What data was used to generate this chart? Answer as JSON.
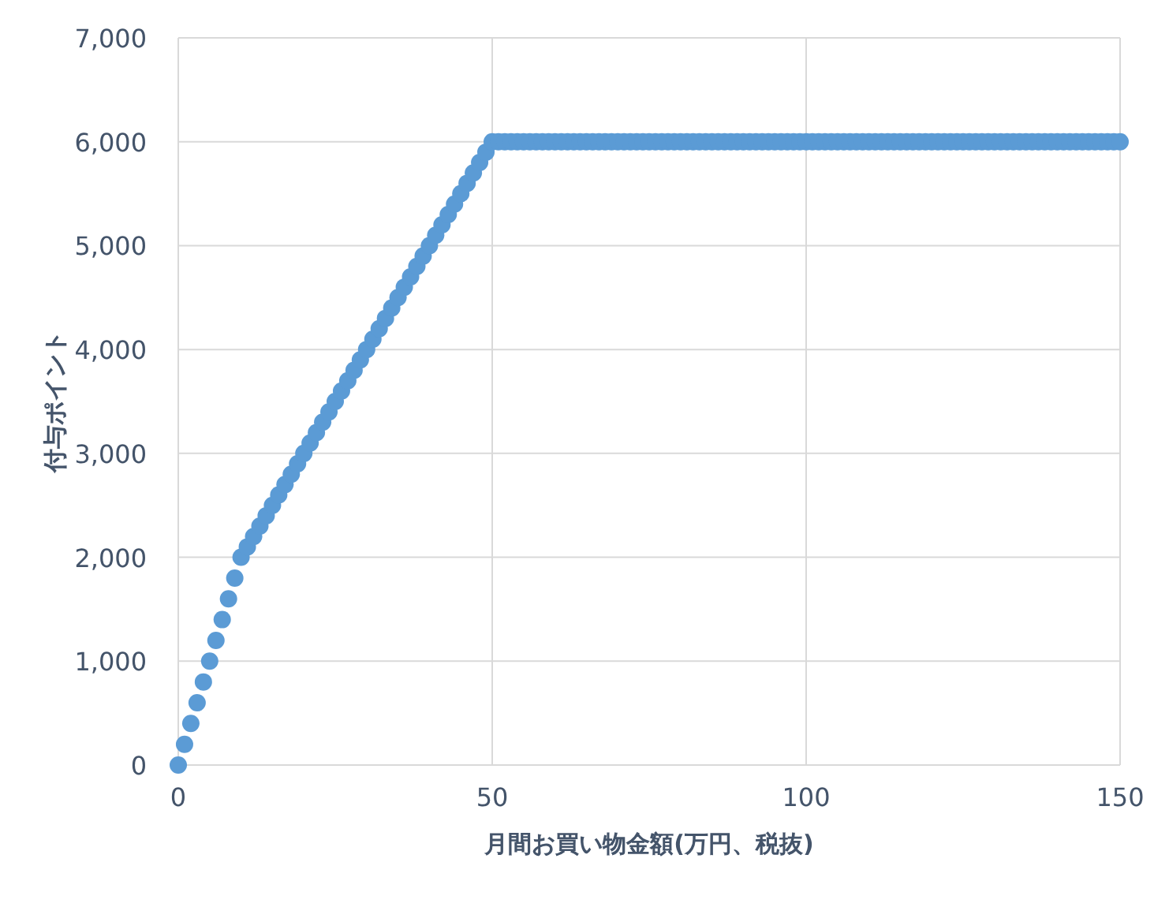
{
  "chart_data": {
    "type": "scatter",
    "xlabel": "月間お買い物金額(万円、税抜)",
    "ylabel": "付与ポイント",
    "xlim": [
      0,
      150
    ],
    "xticks": [
      0,
      50,
      100,
      150
    ],
    "ylim": [
      0,
      7000
    ],
    "yticks": [
      {
        "value": 0,
        "label": "0"
      },
      {
        "value": 1000,
        "label": "1,000"
      },
      {
        "value": 2000,
        "label": "2,000"
      },
      {
        "value": 3000,
        "label": "3,000"
      },
      {
        "value": 4000,
        "label": "4,000"
      },
      {
        "value": 5000,
        "label": "5,000"
      },
      {
        "value": 6000,
        "label": "6,000"
      },
      {
        "value": 7000,
        "label": "7,000"
      }
    ],
    "grid": true,
    "marker": "circle",
    "series": [
      {
        "color": "#5b9bd5",
        "x": [
          0,
          1,
          2,
          3,
          4,
          5,
          6,
          7,
          8,
          9,
          10,
          11,
          12,
          13,
          14,
          15,
          16,
          17,
          18,
          19,
          20,
          21,
          22,
          23,
          24,
          25,
          26,
          27,
          28,
          29,
          30,
          31,
          32,
          33,
          34,
          35,
          36,
          37,
          38,
          39,
          40,
          41,
          42,
          43,
          44,
          45,
          46,
          47,
          48,
          49,
          50,
          51,
          52,
          53,
          54,
          55,
          56,
          57,
          58,
          59,
          60,
          61,
          62,
          63,
          64,
          65,
          66,
          67,
          68,
          69,
          70,
          71,
          72,
          73,
          74,
          75,
          76,
          77,
          78,
          79,
          80,
          81,
          82,
          83,
          84,
          85,
          86,
          87,
          88,
          89,
          90,
          91,
          92,
          93,
          94,
          95,
          96,
          97,
          98,
          99,
          100,
          101,
          102,
          103,
          104,
          105,
          106,
          107,
          108,
          109,
          110,
          111,
          112,
          113,
          114,
          115,
          116,
          117,
          118,
          119,
          120,
          121,
          122,
          123,
          124,
          125,
          126,
          127,
          128,
          129,
          130,
          131,
          132,
          133,
          134,
          135,
          136,
          137,
          138,
          139,
          140,
          141,
          142,
          143,
          144,
          145,
          146,
          147,
          148,
          149,
          150
        ],
        "values": [
          0,
          200,
          400,
          600,
          800,
          1000,
          1200,
          1400,
          1600,
          1800,
          2000,
          2100,
          2200,
          2300,
          2400,
          2500,
          2600,
          2700,
          2800,
          2900,
          3000,
          3100,
          3200,
          3300,
          3400,
          3500,
          3600,
          3700,
          3800,
          3900,
          4000,
          4100,
          4200,
          4300,
          4400,
          4500,
          4600,
          4700,
          4800,
          4900,
          5000,
          5100,
          5200,
          5300,
          5400,
          5500,
          5600,
          5700,
          5800,
          5900,
          6000,
          6000,
          6000,
          6000,
          6000,
          6000,
          6000,
          6000,
          6000,
          6000,
          6000,
          6000,
          6000,
          6000,
          6000,
          6000,
          6000,
          6000,
          6000,
          6000,
          6000,
          6000,
          6000,
          6000,
          6000,
          6000,
          6000,
          6000,
          6000,
          6000,
          6000,
          6000,
          6000,
          6000,
          6000,
          6000,
          6000,
          6000,
          6000,
          6000,
          6000,
          6000,
          6000,
          6000,
          6000,
          6000,
          6000,
          6000,
          6000,
          6000,
          6000,
          6000,
          6000,
          6000,
          6000,
          6000,
          6000,
          6000,
          6000,
          6000,
          6000,
          6000,
          6000,
          6000,
          6000,
          6000,
          6000,
          6000,
          6000,
          6000,
          6000,
          6000,
          6000,
          6000,
          6000,
          6000,
          6000,
          6000,
          6000,
          6000,
          6000,
          6000,
          6000,
          6000,
          6000,
          6000,
          6000,
          6000,
          6000,
          6000,
          6000,
          6000,
          6000,
          6000,
          6000,
          6000,
          6000,
          6000,
          6000,
          6000,
          6000
        ]
      }
    ]
  }
}
